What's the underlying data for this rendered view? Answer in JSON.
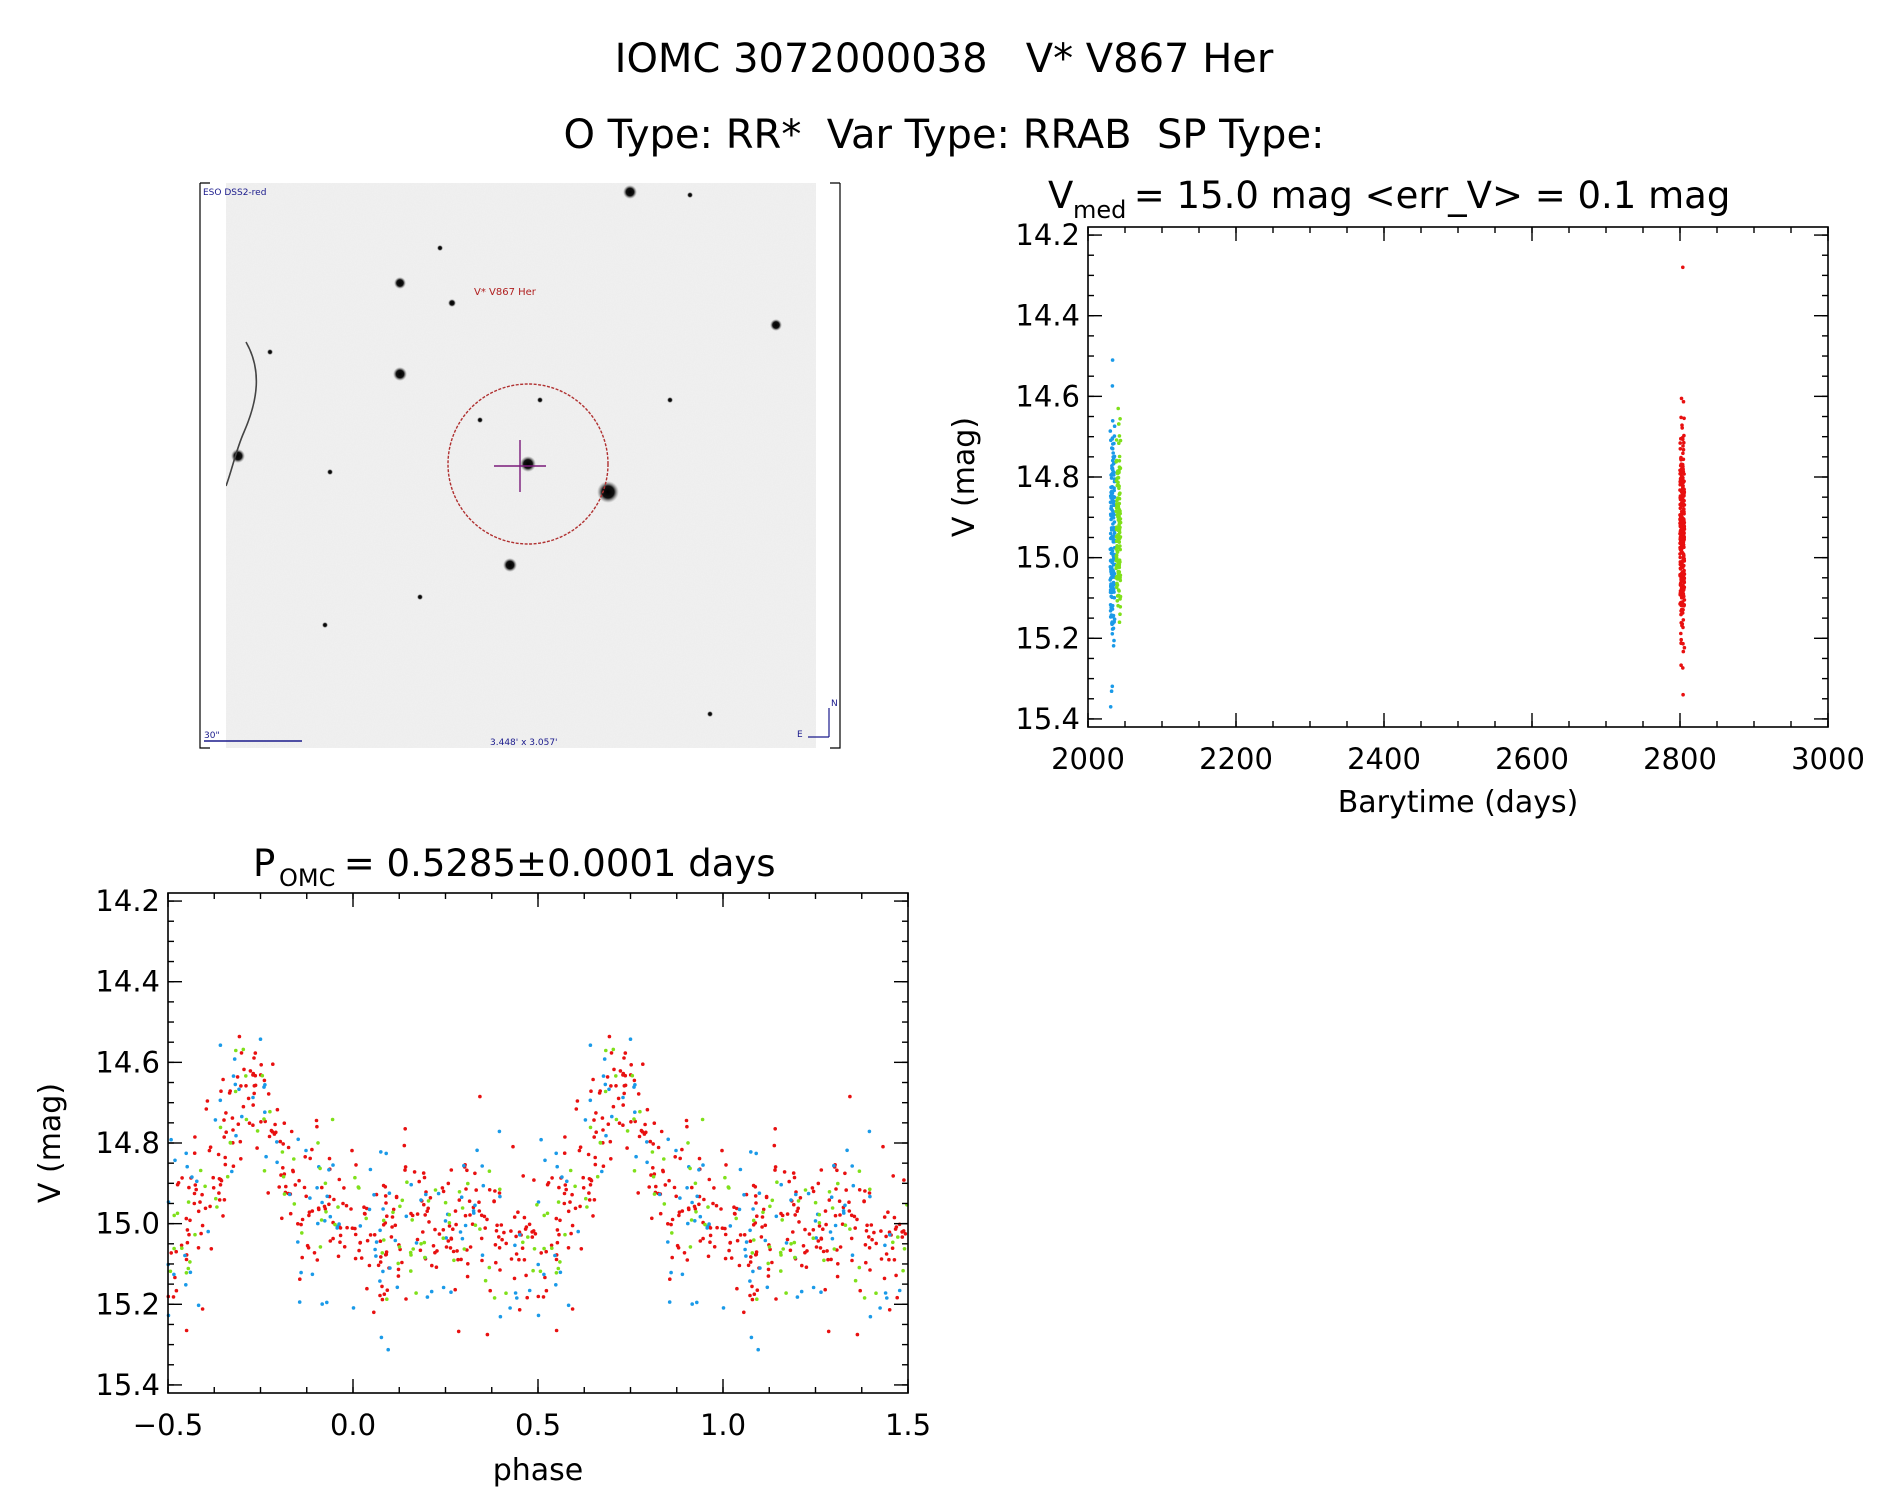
{
  "header": {
    "line1": "IOMC 3072000038   V* V867 Her",
    "line2": "O Type: RR*  Var Type: RRAB  SP Type:"
  },
  "finder_image": {
    "survey_label": "ESO DSS2-red",
    "target_label": "V* V867 Her",
    "scale_label": "30\"",
    "size_label": "3.448' x 3.057'",
    "north_label": "N",
    "east_label": "E"
  },
  "colors": {
    "red": "#e81010",
    "green": "#7fe01a",
    "blue": "#1a9ae8",
    "reticle_circle": "#b03030",
    "cross": "#7a1a7a"
  },
  "chart_data": [
    {
      "type": "scatter",
      "title_main": "V",
      "title_sub": "med",
      "title_rest": " = 15.0 mag <err_V> = 0.1 mag",
      "xlabel": "Barytime (days)",
      "ylabel": "V (mag)",
      "xlim": [
        2000,
        3000
      ],
      "ylim": [
        15.42,
        14.18
      ],
      "xticks": [
        "2000",
        "2200",
        "2400",
        "2600",
        "2800",
        "3000"
      ],
      "yticks": [
        "14.2",
        "14.4",
        "14.6",
        "14.8",
        "15.0",
        "15.2",
        "15.4"
      ],
      "series": [
        {
          "color": "blue",
          "x_center": 2033,
          "x_spread": 3,
          "y_min": 14.51,
          "y_max": 15.37,
          "y_mean": 14.96,
          "y_sd": 0.15,
          "count": 170
        },
        {
          "color": "green",
          "x_center": 2041,
          "x_spread": 3,
          "y_min": 14.63,
          "y_max": 15.16,
          "y_mean": 14.94,
          "y_sd": 0.11,
          "count": 140
        },
        {
          "color": "red",
          "x_center": 2803,
          "x_spread": 3,
          "y_min": 14.28,
          "y_max": 15.34,
          "y_mean": 14.95,
          "y_sd": 0.12,
          "count": 330
        }
      ]
    },
    {
      "type": "scatter",
      "title_main": "P",
      "title_sub": "OMC",
      "title_rest": " = 0.5285±0.0001 days",
      "xlabel": "phase",
      "ylabel": "V (mag)",
      "xlim": [
        -0.5,
        1.5
      ],
      "ylim": [
        15.42,
        14.18
      ],
      "xticks": [
        "−0.5",
        "0.0",
        "0.5",
        "1.0",
        "1.5"
      ],
      "yticks": [
        "14.2",
        "14.4",
        "14.6",
        "14.8",
        "15.0",
        "15.2",
        "15.4"
      ],
      "light_curve": {
        "phase": [
          0.0,
          0.1,
          0.2,
          0.3,
          0.4,
          0.5,
          0.55,
          0.6,
          0.65,
          0.7,
          0.75,
          0.8,
          0.85,
          0.9,
          1.0
        ],
        "mag": [
          15.0,
          15.02,
          15.02,
          15.0,
          15.03,
          15.05,
          15.02,
          14.93,
          14.8,
          14.66,
          14.7,
          14.82,
          14.92,
          14.96,
          15.0
        ]
      },
      "series": [
        {
          "color": "red",
          "count": 340,
          "scatter": 0.085
        },
        {
          "color": "blue",
          "count": 110,
          "scatter": 0.12
        },
        {
          "color": "green",
          "count": 90,
          "scatter": 0.09
        }
      ]
    }
  ]
}
